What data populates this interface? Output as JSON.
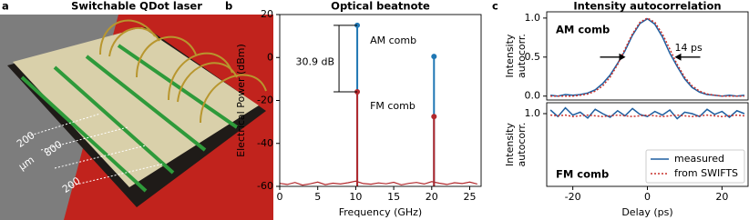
{
  "photo": {
    "letter": "a",
    "title": "Switchable QDot laser",
    "scale_labels": [
      "200",
      "800",
      "200",
      "µm"
    ]
  },
  "chart_data": [
    {
      "type": "stem",
      "letter": "b",
      "title": "Optical beatnote",
      "x_label": "Frequency (GHz)",
      "y_label": "Electrical Power (dBm)",
      "xlim": [
        0,
        26.5
      ],
      "xticks": [
        0,
        5,
        10,
        15,
        20,
        25
      ],
      "ylim": [
        -60,
        20
      ],
      "yticks": [
        -60,
        -40,
        -20,
        0,
        20
      ],
      "series": [
        {
          "name": "AM comb",
          "color": "#1f77b4",
          "x": [
            10.2,
            20.3
          ],
          "values": [
            15,
            0.5
          ]
        },
        {
          "name": "FM comb",
          "color": "#b2282c",
          "x": [
            10.2,
            20.3
          ],
          "values": [
            -16,
            -27.5
          ]
        }
      ],
      "noise_floor": {
        "color": "#b2282c",
        "x": [
          0,
          1,
          2,
          3,
          4,
          5,
          6,
          7,
          8,
          9,
          10,
          11,
          12,
          13,
          14,
          15,
          16,
          17,
          18,
          19,
          20,
          21,
          22,
          23,
          24,
          25,
          26
        ],
        "values": [
          -58.6,
          -59.1,
          -58.2,
          -59.4,
          -58.8,
          -58.0,
          -59.2,
          -58.5,
          -58.9,
          -58.3,
          -57.6,
          -58.7,
          -59.0,
          -58.4,
          -58.8,
          -58.1,
          -59.3,
          -58.6,
          -58.2,
          -58.9,
          -57.8,
          -58.5,
          -59.1,
          -58.3,
          -58.7,
          -58.0,
          -58.9
        ]
      },
      "annotation": "30.9 dB"
    },
    {
      "type": "line",
      "letter": "c",
      "title": "Intensity autocorrelation",
      "label": "AM comb",
      "y_label": [
        "Intensity",
        "autocorr."
      ],
      "xlim": [
        -27,
        27
      ],
      "ylim": [
        -0.05,
        1.08
      ],
      "yticks": [
        {
          "value": 0,
          "label": "0.0"
        },
        {
          "value": 0.5,
          "label": "0.5"
        },
        {
          "value": 1,
          "label": "1.0"
        }
      ],
      "annotation": "14 ps",
      "x": [
        -26,
        -24,
        -22,
        -20,
        -18,
        -16,
        -14,
        -12,
        -10,
        -8,
        -6,
        -4,
        -2,
        0,
        2,
        4,
        6,
        8,
        10,
        12,
        14,
        16,
        18,
        20,
        22,
        24,
        26
      ],
      "series": [
        {
          "name": "measured",
          "color": "#1f5fa0",
          "style": "solid",
          "values": [
            0.01,
            0.0,
            0.02,
            0.01,
            0.02,
            0.04,
            0.08,
            0.16,
            0.27,
            0.42,
            0.58,
            0.78,
            0.93,
            0.99,
            0.92,
            0.76,
            0.55,
            0.38,
            0.22,
            0.11,
            0.05,
            0.02,
            0.01,
            0.0,
            0.01,
            0.0,
            0.01
          ]
        },
        {
          "name": "from SWIFTS",
          "color": "#c8302c",
          "style": "dotted",
          "values": [
            0,
            0,
            0,
            0,
            0.01,
            0.027,
            0.063,
            0.131,
            0.243,
            0.405,
            0.602,
            0.798,
            0.945,
            1.0,
            0.945,
            0.798,
            0.602,
            0.405,
            0.243,
            0.131,
            0.063,
            0.027,
            0.01,
            0,
            0,
            0,
            0
          ]
        }
      ]
    },
    {
      "type": "line",
      "label": "FM comb",
      "y_label": [
        "Intensity",
        "autocorr."
      ],
      "x_label": "Delay (ps)",
      "xlim": [
        -27,
        27
      ],
      "xticks": [
        -20,
        0,
        20
      ],
      "ylim": [
        0,
        1.15
      ],
      "yticks": [
        {
          "value": 1,
          "label": "1.0"
        }
      ],
      "legend": "lower right",
      "x": [
        -26,
        -24,
        -22,
        -20,
        -18,
        -16,
        -14,
        -12,
        -10,
        -8,
        -6,
        -4,
        -2,
        0,
        2,
        4,
        6,
        8,
        10,
        12,
        14,
        16,
        18,
        20,
        22,
        24,
        26
      ],
      "series": [
        {
          "name": "measured",
          "color": "#1f5fa0",
          "style": "solid",
          "values": [
            1.05,
            0.96,
            1.08,
            0.98,
            1.02,
            0.94,
            1.06,
            1.0,
            0.95,
            1.04,
            0.97,
            1.07,
            0.99,
            0.96,
            1.03,
            0.98,
            1.05,
            0.93,
            1.02,
            1.0,
            0.96,
            1.06,
            0.99,
            1.03,
            0.95,
            1.04,
            1.0
          ]
        },
        {
          "name": "from SWIFTS",
          "color": "#c8302c",
          "style": "dotted",
          "values": [
            0.98,
            0.97,
            0.98,
            0.96,
            0.97,
            0.98,
            0.97,
            0.96,
            0.97,
            0.98,
            0.97,
            0.96,
            0.97,
            0.98,
            0.97,
            0.96,
            0.97,
            0.98,
            0.97,
            0.96,
            0.97,
            0.98,
            0.97,
            0.96,
            0.97,
            0.98,
            0.97
          ]
        }
      ]
    }
  ]
}
